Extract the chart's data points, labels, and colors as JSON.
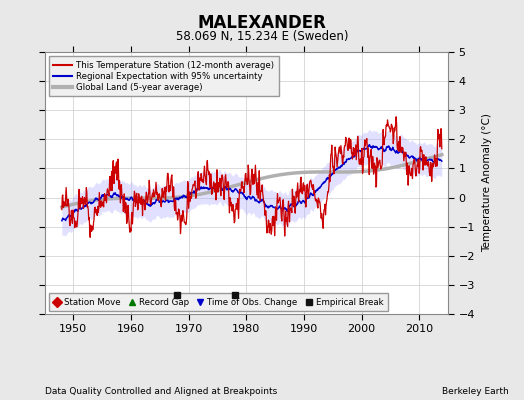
{
  "title": "MALEXANDER",
  "subtitle": "58.069 N, 15.234 E (Sweden)",
  "xlabel_left": "Data Quality Controlled and Aligned at Breakpoints",
  "xlabel_right": "Berkeley Earth",
  "ylabel": "Temperature Anomaly (°C)",
  "xlim": [
    1945,
    2015
  ],
  "ylim": [
    -4,
    5
  ],
  "yticks": [
    -4,
    -3,
    -2,
    -1,
    0,
    1,
    2,
    3,
    4,
    5
  ],
  "xticks": [
    1950,
    1960,
    1970,
    1980,
    1990,
    2000,
    2010
  ],
  "bg_color": "#e8e8e8",
  "plot_bg_color": "#ffffff",
  "red_color": "#cc0000",
  "blue_color": "#0000cc",
  "gray_color": "#b0b0b0",
  "blue_band_color": "#aaaaff",
  "empirical_break_years": [
    1968,
    1978
  ],
  "empirical_break_y": -3.35,
  "legend_items": [
    {
      "label": "This Temperature Station (12-month average)",
      "color": "#cc0000",
      "lw": 1.5
    },
    {
      "label": "Regional Expectation with 95% uncertainty",
      "color": "#0000cc",
      "lw": 1.5
    },
    {
      "label": "Global Land (5-year average)",
      "color": "#b0b0b0",
      "lw": 3
    }
  ],
  "marker_legend": [
    {
      "label": "Station Move",
      "marker": "D",
      "color": "#cc0000"
    },
    {
      "label": "Record Gap",
      "marker": "^",
      "color": "#007700"
    },
    {
      "label": "Time of Obs. Change",
      "marker": "v",
      "color": "#0000cc"
    },
    {
      "label": "Empirical Break",
      "marker": "s",
      "color": "#111111"
    }
  ]
}
